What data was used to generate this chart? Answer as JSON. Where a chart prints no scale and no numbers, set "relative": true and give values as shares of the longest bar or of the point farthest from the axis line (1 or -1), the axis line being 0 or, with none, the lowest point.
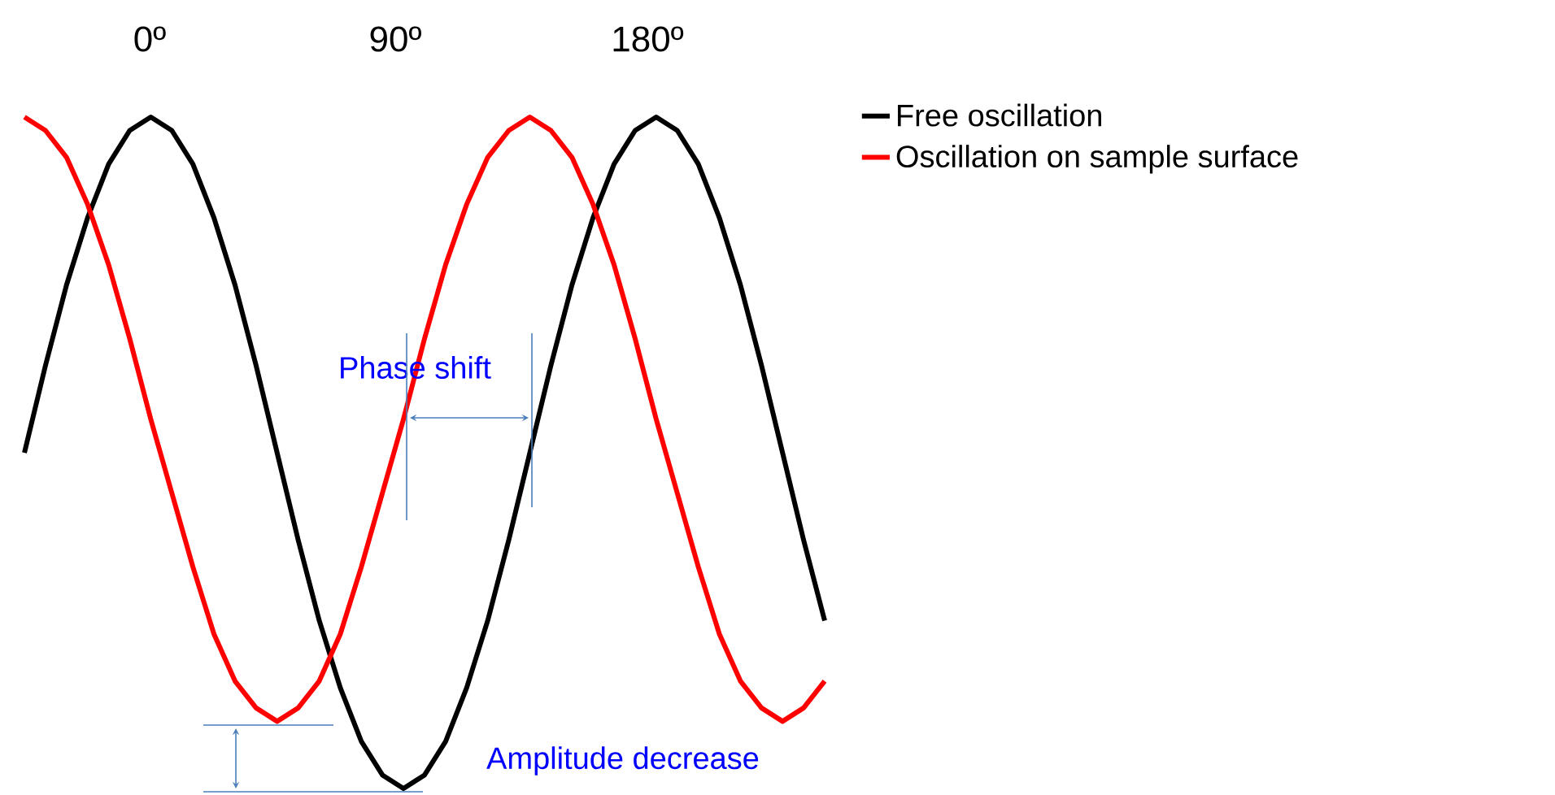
{
  "chart_data": {
    "type": "line",
    "relative": true,
    "legend": "top right",
    "categories": [
      null,
      null,
      null,
      null,
      null,
      null,
      null,
      null,
      null,
      null,
      null,
      null,
      null,
      null,
      null,
      null,
      null,
      null,
      null,
      null,
      null,
      null,
      null,
      null,
      null,
      null,
      null,
      null,
      null,
      null,
      null,
      null,
      null,
      null,
      null,
      null,
      null,
      null,
      null
    ],
    "series": [
      {
        "name": "Free oscillation",
        "color": "#000000",
        "values": [
          0.5,
          0.63,
          0.75,
          0.85,
          0.93,
          0.98,
          1,
          0.98,
          0.93,
          0.85,
          0.75,
          0.63,
          0.5,
          0.37,
          0.25,
          0.15,
          0.07,
          0.02,
          0,
          0.02,
          0.07,
          0.15,
          0.25,
          0.37,
          0.5,
          0.63,
          0.75,
          0.85,
          0.93,
          0.98,
          1,
          0.98,
          0.93,
          0.85,
          0.75,
          0.63,
          0.5,
          0.37,
          0.25
        ]
      },
      {
        "name": "Oscillation on sample surface",
        "color": "#ff0000",
        "values": [
          1,
          0.98,
          0.94,
          0.87,
          0.78,
          0.67,
          0.55,
          0.44,
          0.33,
          0.23,
          0.16,
          0.12,
          0.1,
          0.12,
          0.16,
          0.23,
          0.33,
          0.44,
          0.55,
          0.67,
          0.78,
          0.87,
          0.94,
          0.98,
          1,
          0.98,
          0.94,
          0.87,
          0.78,
          0.67,
          0.55,
          0.44,
          0.33,
          0.23,
          0.16,
          0.12,
          0.1,
          0.12,
          0.16
        ]
      }
    ],
    "annotations": [
      "0º",
      "90º",
      "180º",
      "Phase shift",
      "Amplitude decrease"
    ]
  }
}
